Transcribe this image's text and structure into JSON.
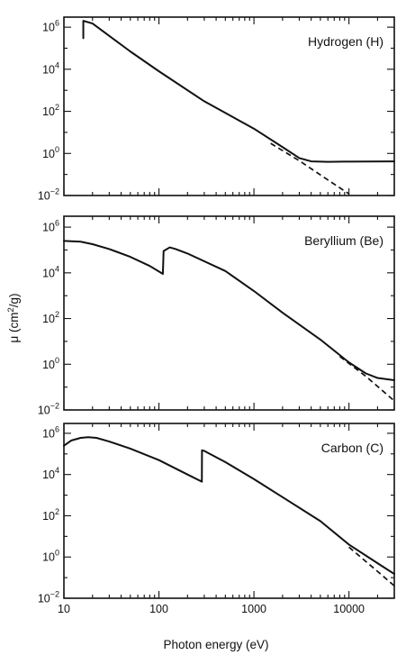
{
  "chart_data": {
    "type": "line",
    "xlabel": "Photon energy (eV)",
    "ylabel_prefix": "μ (cm",
    "ylabel_sup": "2",
    "ylabel_suffix": "/g)",
    "xscale": "log",
    "yscale": "log",
    "xlim": [
      10,
      30000
    ],
    "ylim": [
      0.01,
      3000000
    ],
    "x_ticks": [
      10,
      100,
      1000,
      10000
    ],
    "x_tick_labels": [
      "10",
      "100",
      "1000",
      "10000"
    ],
    "y_ticks": [
      0.01,
      1,
      100,
      10000,
      1000000
    ],
    "y_tick_bases": [
      "10",
      "10",
      "10",
      "10",
      "10"
    ],
    "y_tick_exps": [
      "−2",
      "0",
      "2",
      "4",
      "6"
    ],
    "panels": [
      {
        "label": "Hydrogen (H)",
        "series": [
          {
            "style": "solid",
            "x": [
              16,
              16,
              20,
              50,
              100,
              300,
              1000,
              2000,
              3000,
              4000,
              6000,
              10000,
              30000
            ],
            "y": [
              300000,
              2000000,
              1500000,
              70000,
              8000,
              300,
              15,
              2,
              0.6,
              0.42,
              0.4,
              0.41,
              0.42
            ]
          },
          {
            "style": "dashed",
            "x": [
              1500,
              3000,
              6000,
              10000
            ],
            "y": [
              3,
              0.45,
              0.055,
              0.012
            ]
          }
        ]
      },
      {
        "label": "Beryllium (Be)",
        "series": [
          {
            "style": "solid",
            "x": [
              10,
              15,
              20,
              30,
              50,
              80,
              110,
              112,
              130,
              150,
              200,
              500,
              1000,
              2000,
              5000,
              10000,
              15000,
              20000,
              30000
            ],
            "y": [
              250000,
              230000,
              180000,
              110000,
              50000,
              20000,
              9000,
              90000,
              130000,
              110000,
              70000,
              12000,
              1600,
              180,
              12,
              1.2,
              0.4,
              0.25,
              0.2
            ]
          },
          {
            "style": "dashed",
            "x": [
              8000,
              15000,
              30000
            ],
            "y": [
              2.2,
              0.3,
              0.025
            ]
          }
        ]
      },
      {
        "label": "Carbon (C)",
        "series": [
          {
            "style": "solid",
            "x": [
              10,
              12,
              15,
              18,
              22,
              30,
              50,
              100,
              200,
              283,
              284,
              300,
              500,
              1000,
              2000,
              5000,
              10000,
              20000,
              30000
            ],
            "y": [
              250000,
              450000,
              600000,
              650000,
              600000,
              400000,
              180000,
              50000,
              10000,
              4500,
              150000,
              140000,
              40000,
              6000,
              800,
              55,
              4,
              0.5,
              0.15
            ]
          },
          {
            "style": "dashed",
            "x": [
              10000,
              20000,
              30000
            ],
            "y": [
              3,
              0.2,
              0.04
            ]
          }
        ]
      }
    ]
  }
}
